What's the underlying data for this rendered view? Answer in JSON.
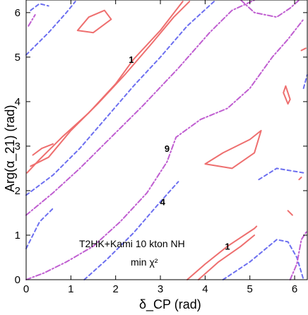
{
  "chart_data": {
    "type": "contour",
    "xlabel": "δ_CP (rad)",
    "ylabel": "Arg(α_21) (rad)",
    "xlim": [
      0,
      6.2832
    ],
    "ylim": [
      0,
      6.2832
    ],
    "x_ticks": [
      "0",
      "1",
      "2",
      "3",
      "4",
      "5",
      "6"
    ],
    "y_ticks": [
      "0",
      "1",
      "2",
      "3",
      "4",
      "5",
      "6"
    ],
    "annotation_lines": [
      "T2HK+Kami 10 kton NH",
      "min χ²"
    ],
    "contour_labels": [
      {
        "text": "1",
        "x": 2.35,
        "y": 4.95
      },
      {
        "text": "9",
        "x": 3.15,
        "y": 2.95
      },
      {
        "text": "4",
        "x": 3.05,
        "y": 1.75
      },
      {
        "text": "1",
        "x": 4.5,
        "y": 0.75
      }
    ],
    "series": [
      {
        "level": "1",
        "style": "solid",
        "color": "#ee6f6f",
        "segments": [
          [
            [
              0.02,
              2.4
            ],
            [
              0.3,
              2.7
            ],
            [
              0.8,
              3.2
            ],
            [
              1.4,
              3.75
            ],
            [
              2.0,
              4.4
            ],
            [
              2.4,
              4.95
            ],
            [
              3.0,
              5.6
            ],
            [
              3.5,
              6.25
            ]
          ],
          [
            [
              0.1,
              2.55
            ],
            [
              0.5,
              2.75
            ],
            [
              1.0,
              3.35
            ],
            [
              1.6,
              3.95
            ],
            [
              2.2,
              4.6
            ],
            [
              2.8,
              5.3
            ],
            [
              3.3,
              5.9
            ],
            [
              3.65,
              6.25
            ]
          ],
          [
            [
              0.15,
              2.8
            ],
            [
              0.35,
              2.95
            ],
            [
              0.6,
              3.05
            ]
          ],
          [
            [
              4.0,
              2.6
            ],
            [
              4.4,
              2.85
            ],
            [
              5.0,
              3.15
            ],
            [
              5.25,
              3.35
            ],
            [
              5.1,
              2.85
            ],
            [
              4.6,
              2.5
            ],
            [
              4.0,
              2.6
            ]
          ],
          [
            [
              3.6,
              0.0
            ],
            [
              4.0,
              0.35
            ],
            [
              4.5,
              0.75
            ],
            [
              5.1,
              1.15
            ],
            [
              5.15,
              1.2
            ]
          ],
          [
            [
              3.85,
              0.0
            ],
            [
              4.3,
              0.4
            ],
            [
              4.8,
              0.75
            ],
            [
              5.1,
              1.0
            ]
          ],
          [
            [
              1.15,
              5.6
            ],
            [
              1.4,
              5.9
            ],
            [
              1.75,
              6.05
            ],
            [
              1.9,
              5.85
            ],
            [
              1.5,
              5.55
            ],
            [
              1.15,
              5.6
            ]
          ],
          [
            [
              5.75,
              4.2
            ],
            [
              5.85,
              3.95
            ],
            [
              5.9,
              4.05
            ],
            [
              5.8,
              4.35
            ],
            [
              5.75,
              4.2
            ]
          ],
          [
            [
              5.85,
              1.55
            ],
            [
              5.95,
              1.45
            ]
          ],
          [
            [
              6.1,
              2.25
            ],
            [
              6.15,
              2.3
            ]
          ],
          [
            [
              6.15,
              5.15
            ],
            [
              6.25,
              5.2
            ]
          ]
        ]
      },
      {
        "level": "4",
        "style": "dashed",
        "color": "#6c6ff0",
        "segments": [
          [
            [
              0.0,
              5.05
            ],
            [
              0.5,
              5.55
            ],
            [
              0.9,
              6.0
            ],
            [
              1.1,
              6.25
            ]
          ],
          [
            [
              0.0,
              1.9
            ],
            [
              0.6,
              2.35
            ],
            [
              1.2,
              2.95
            ],
            [
              1.8,
              3.65
            ],
            [
              2.4,
              4.35
            ],
            [
              3.0,
              5.0
            ],
            [
              3.6,
              5.7
            ],
            [
              4.2,
              6.25
            ]
          ],
          [
            [
              0.0,
              0.7
            ],
            [
              0.3,
              1.3
            ],
            [
              0.6,
              1.6
            ]
          ],
          [
            [
              1.3,
              0.0
            ],
            [
              1.8,
              0.45
            ],
            [
              2.4,
              1.05
            ],
            [
              3.0,
              1.75
            ],
            [
              3.4,
              2.2
            ]
          ],
          [
            [
              4.4,
              0.0
            ],
            [
              5.0,
              0.4
            ],
            [
              5.6,
              0.9
            ],
            [
              5.85,
              0.85
            ],
            [
              6.05,
              0.5
            ],
            [
              6.2,
              0.0
            ]
          ],
          [
            [
              5.2,
              2.25
            ],
            [
              5.6,
              2.5
            ],
            [
              6.2,
              2.4
            ]
          ],
          [
            [
              0.1,
              6.05
            ],
            [
              0.3,
              6.2
            ],
            [
              0.5,
              6.15
            ]
          ],
          [
            [
              6.2,
              4.3
            ],
            [
              6.28,
              4.6
            ]
          ]
        ]
      },
      {
        "level": "9",
        "style": "dash-dot",
        "color": "#c05fd1",
        "segments": [
          [
            [
              0.0,
              1.45
            ],
            [
              0.6,
              1.95
            ],
            [
              1.2,
              2.5
            ],
            [
              1.8,
              3.1
            ],
            [
              2.6,
              3.9
            ],
            [
              3.4,
              4.75
            ],
            [
              4.1,
              5.55
            ],
            [
              4.6,
              6.05
            ],
            [
              5.1,
              6.28
            ]
          ],
          [
            [
              0.0,
              0.0
            ],
            [
              0.4,
              0.15
            ],
            [
              0.9,
              0.4
            ],
            [
              1.5,
              0.75
            ],
            [
              2.1,
              1.3
            ],
            [
              2.7,
              1.95
            ],
            [
              3.15,
              2.65
            ],
            [
              3.35,
              3.2
            ],
            [
              3.9,
              3.6
            ],
            [
              4.5,
              3.85
            ],
            [
              5.0,
              4.3
            ],
            [
              5.5,
              5.0
            ],
            [
              5.85,
              5.4
            ],
            [
              6.2,
              5.85
            ]
          ],
          [
            [
              4.8,
              6.28
            ],
            [
              5.1,
              6.0
            ],
            [
              5.6,
              5.9
            ],
            [
              5.9,
              6.1
            ],
            [
              6.1,
              6.28
            ]
          ],
          [
            [
              5.9,
              0.0
            ],
            [
              6.05,
              0.35
            ],
            [
              6.15,
              0.9
            ],
            [
              6.28,
              1.1
            ]
          ],
          [
            [
              0.05,
              5.7
            ],
            [
              0.2,
              5.95
            ]
          ]
        ]
      }
    ]
  }
}
